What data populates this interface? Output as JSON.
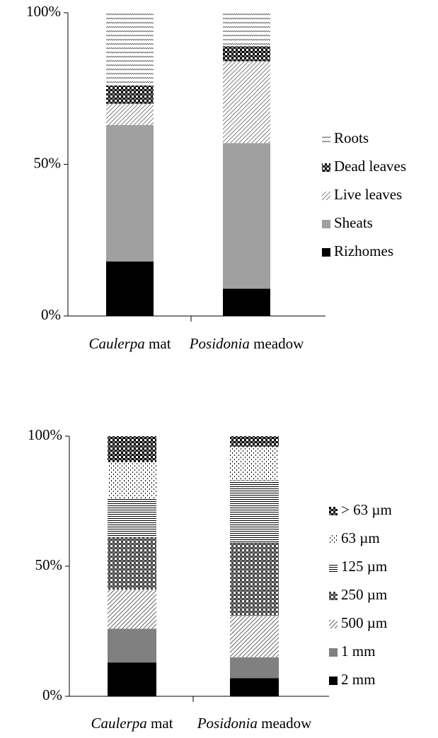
{
  "chart_data": [
    {
      "type": "stacked_bar",
      "categories": [
        "Caulerpa mat",
        "Posidonia meadow"
      ],
      "series": [
        {
          "name": "Rizhomes",
          "color": "#000000",
          "pattern": "solid",
          "values": [
            18,
            9
          ]
        },
        {
          "name": "Sheats",
          "color": "#a0a0a0",
          "pattern": "solid",
          "values": [
            45,
            48
          ]
        },
        {
          "name": "Live leaves",
          "color": "#808080",
          "pattern": "diagonal",
          "values": [
            7,
            27
          ]
        },
        {
          "name": "Dead leaves",
          "color": "#000000",
          "pattern": "checker",
          "values": [
            6,
            5
          ]
        },
        {
          "name": "Roots",
          "color": "#555555",
          "pattern": "wave",
          "values": [
            24,
            11
          ]
        }
      ],
      "ylim": [
        0,
        100
      ],
      "yticks": [
        {
          "value": 0,
          "label": "0%"
        },
        {
          "value": 50,
          "label": "50%"
        },
        {
          "value": 100,
          "label": "100%"
        }
      ],
      "legend": "right"
    },
    {
      "type": "stacked_bar",
      "categories": [
        "Caulerpa mat",
        "Posidonia meadow"
      ],
      "series": [
        {
          "name": "2 mm",
          "color": "#000000",
          "pattern": "solid",
          "values": [
            13,
            7
          ]
        },
        {
          "name": "1 mm",
          "color": "#808080",
          "pattern": "solid",
          "values": [
            13,
            8
          ]
        },
        {
          "name": "500 µm",
          "color": "#666666",
          "pattern": "diagonal",
          "values": [
            15,
            16
          ]
        },
        {
          "name": "250 µm",
          "color": "#444444",
          "pattern": "checker",
          "values": [
            20,
            28
          ]
        },
        {
          "name": "125 µm",
          "color": "#000000",
          "pattern": "hlines",
          "values": [
            15,
            24
          ]
        },
        {
          "name": "63 µm",
          "color": "#000000",
          "pattern": "dots",
          "values": [
            14,
            13
          ]
        },
        {
          "name": "> 63 µm",
          "color": "#000000",
          "pattern": "checker",
          "values": [
            10,
            4
          ]
        }
      ],
      "ylim": [
        0,
        100
      ],
      "yticks": [
        {
          "value": 0,
          "label": "0%"
        },
        {
          "value": 50,
          "label": "50%"
        },
        {
          "value": 100,
          "label": "100%"
        }
      ],
      "legend": "right"
    }
  ]
}
